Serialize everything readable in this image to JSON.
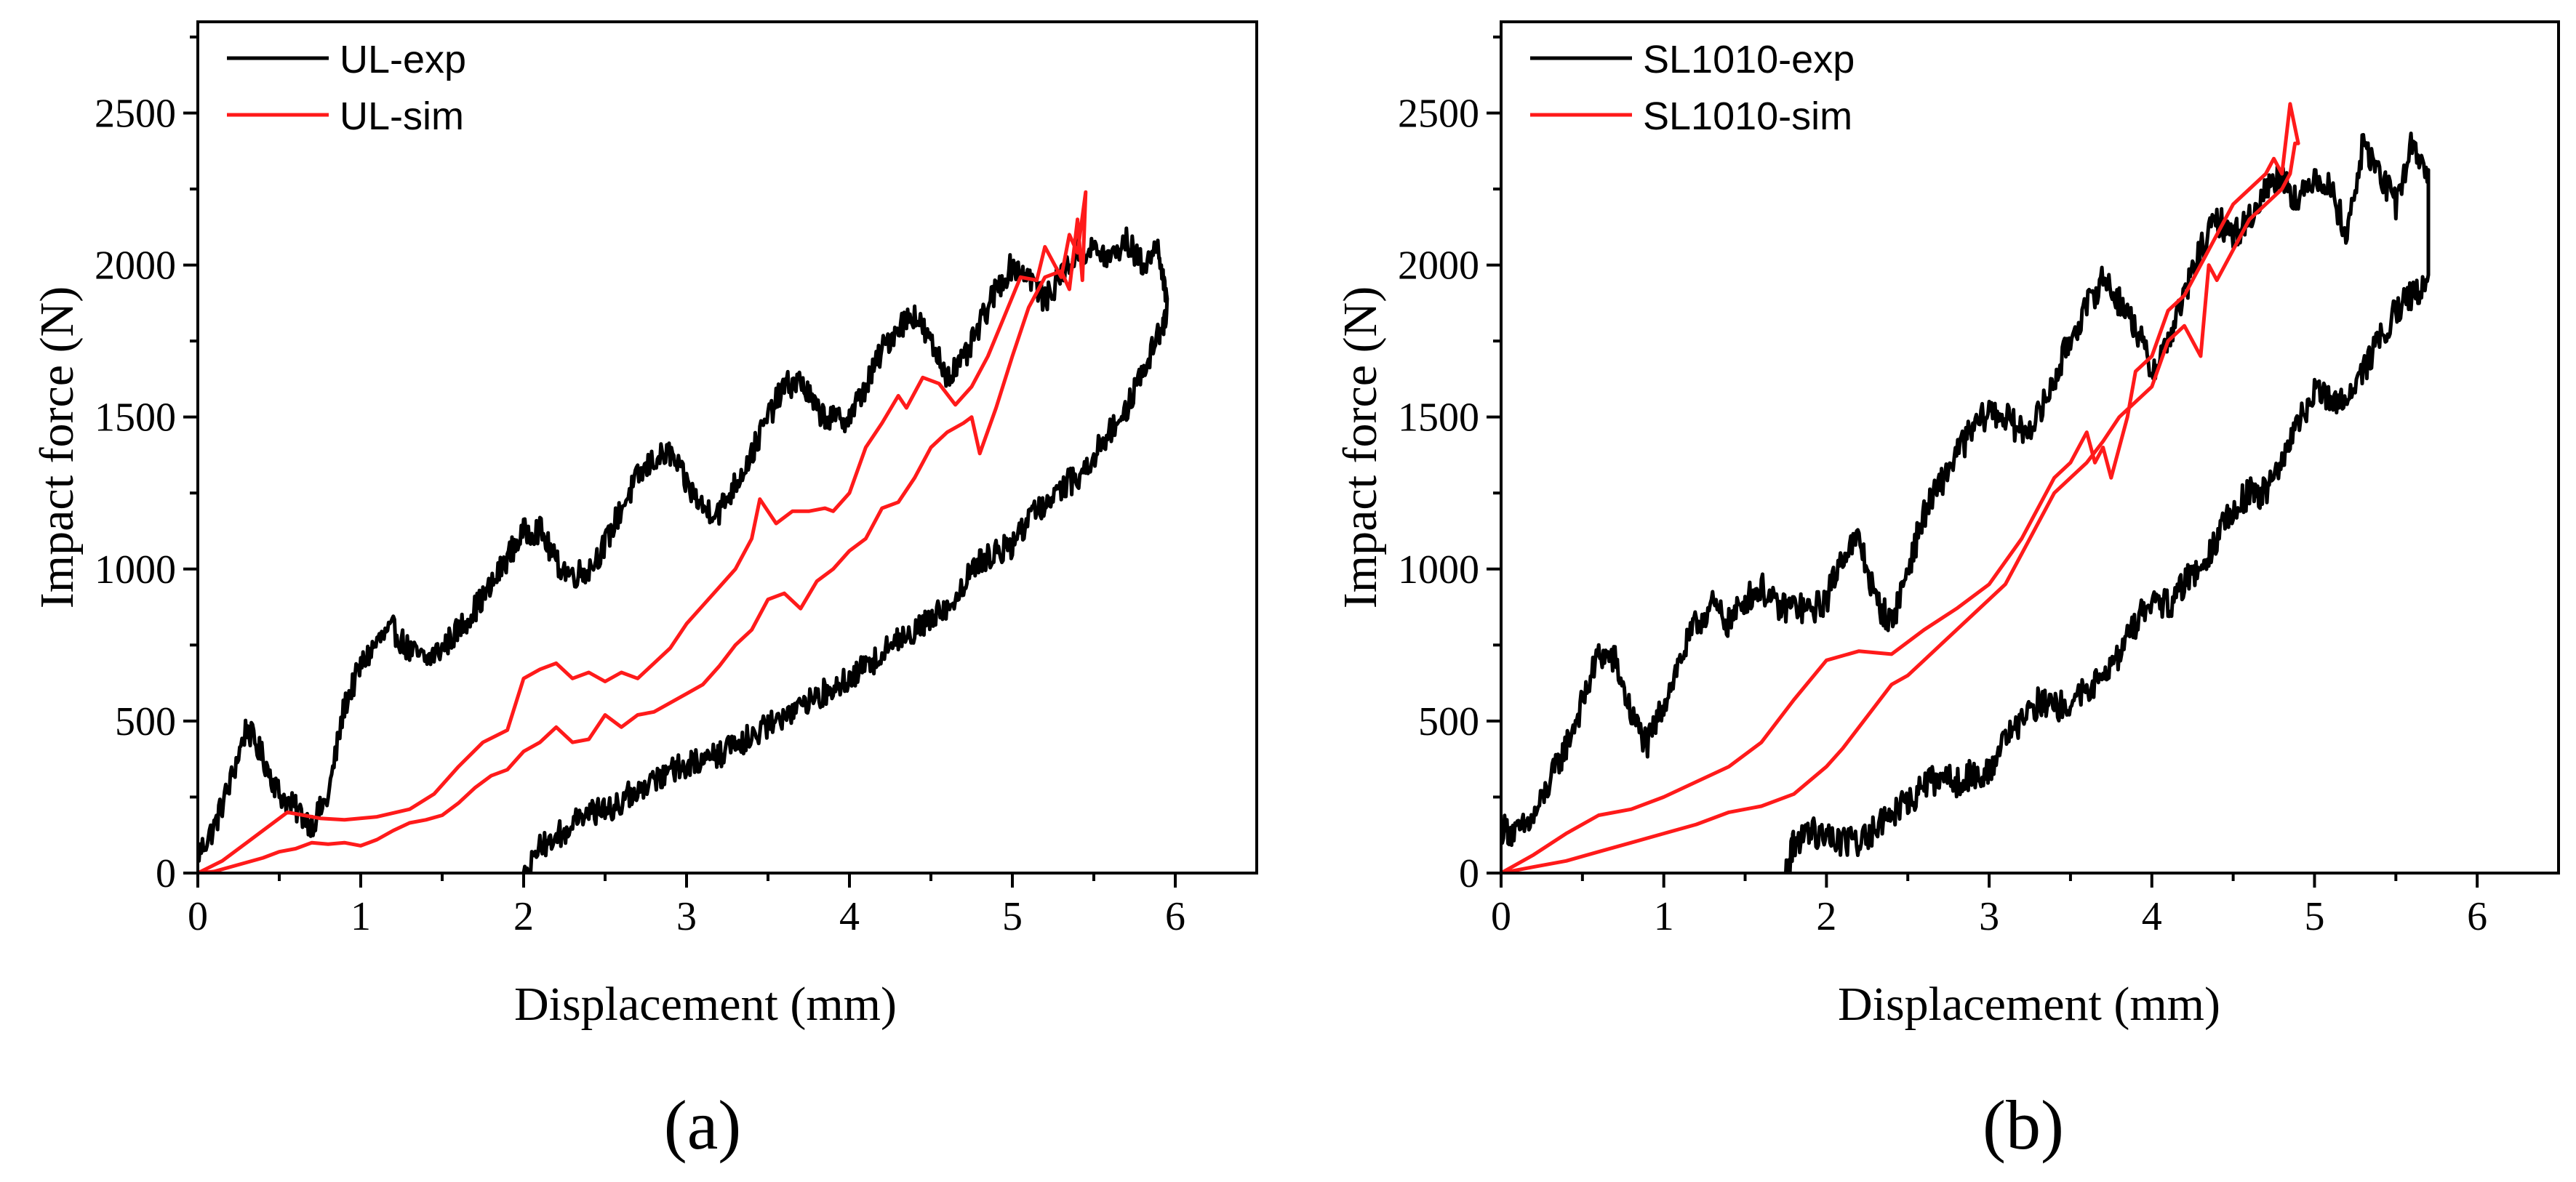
{
  "figure": {
    "panel_labels": [
      "(a)",
      "(b)"
    ]
  },
  "chart_data": [
    {
      "type": "line",
      "panel_label": "(a)",
      "xlabel": "Displacement (mm)",
      "ylabel": "Impact force (N)",
      "xlim": [
        0,
        6.5
      ],
      "ylim": [
        0,
        2800
      ],
      "xticks": [
        0,
        1,
        2,
        3,
        4,
        5,
        6
      ],
      "yticks": [
        0,
        500,
        1000,
        1500,
        2000,
        2500
      ],
      "grid": false,
      "legend_position": "top-left",
      "series": [
        {
          "name": "UL-exp",
          "color": "#000000",
          "noise": 45,
          "x": [
            0,
            0.1,
            0.2,
            0.3,
            0.4,
            0.5,
            0.6,
            0.7,
            0.8,
            0.9,
            1.0,
            1.1,
            1.2,
            1.3,
            1.4,
            1.5,
            1.6,
            1.7,
            1.8,
            1.9,
            2.0,
            2.1,
            2.2,
            2.3,
            2.4,
            2.5,
            2.6,
            2.7,
            2.8,
            2.9,
            3.0,
            3.1,
            3.2,
            3.3,
            3.4,
            3.5,
            3.6,
            3.7,
            3.8,
            3.9,
            4.0,
            4.1,
            4.2,
            4.3,
            4.4,
            4.5,
            4.6,
            4.7,
            4.8,
            4.9,
            5.0,
            5.1,
            5.2,
            5.3,
            5.4,
            5.5,
            5.6,
            5.7,
            5.8,
            5.9,
            5.95,
            5.9,
            5.8,
            5.7,
            5.6,
            5.5,
            5.4,
            5.3,
            5.2,
            5.1,
            5.0,
            4.9,
            4.8,
            4.7,
            4.6,
            4.5,
            4.4,
            4.3,
            4.2,
            4.1,
            4.0,
            3.9,
            3.8,
            3.7,
            3.6,
            3.5,
            3.4,
            3.3,
            3.2,
            3.1,
            3.0,
            2.9,
            2.8,
            2.7,
            2.6,
            2.5,
            2.4,
            2.3,
            2.2,
            2.1,
            2.0
          ],
          "y": [
            60,
            150,
            300,
            480,
            380,
            260,
            210,
            160,
            250,
            550,
            680,
            760,
            800,
            730,
            700,
            740,
            800,
            870,
            940,
            1040,
            1120,
            1130,
            1020,
            980,
            1000,
            1080,
            1200,
            1300,
            1360,
            1380,
            1280,
            1200,
            1190,
            1280,
            1380,
            1500,
            1600,
            1620,
            1520,
            1490,
            1500,
            1600,
            1720,
            1800,
            1840,
            1740,
            1640,
            1680,
            1800,
            1920,
            2000,
            1970,
            1880,
            1970,
            2040,
            2050,
            2020,
            2080,
            2000,
            2060,
            1850,
            1770,
            1650,
            1520,
            1460,
            1370,
            1300,
            1270,
            1220,
            1170,
            1080,
            1050,
            1020,
            950,
            880,
            830,
            800,
            780,
            720,
            680,
            640,
            610,
            580,
            560,
            520,
            490,
            450,
            420,
            390,
            370,
            360,
            340,
            310,
            280,
            240,
            200,
            200,
            160,
            120,
            80,
            0
          ]
        },
        {
          "name": "UL-sim",
          "color": "#ff1a1a",
          "noise": 0,
          "x": [
            0,
            0.15,
            0.3,
            0.45,
            0.55,
            0.65,
            0.75,
            0.9,
            1.1,
            1.3,
            1.45,
            1.6,
            1.75,
            1.9,
            2.0,
            2.1,
            2.2,
            2.3,
            2.4,
            2.5,
            2.6,
            2.7,
            2.8,
            2.9,
            3.0,
            3.1,
            3.2,
            3.3,
            3.4,
            3.45,
            3.55,
            3.65,
            3.75,
            3.85,
            3.9,
            4.0,
            4.1,
            4.2,
            4.3,
            4.35,
            4.45,
            4.55,
            4.65,
            4.75,
            4.85,
            4.95,
            5.05,
            5.15,
            5.2,
            5.3,
            5.35,
            5.4,
            5.45,
            5.43,
            5.4,
            5.35,
            5.3,
            5.2,
            5.1,
            5.0,
            4.9,
            4.8,
            4.75,
            4.7,
            4.6,
            4.5,
            4.4,
            4.3,
            4.2,
            4.1,
            4.0,
            3.9,
            3.8,
            3.7,
            3.6,
            3.5,
            3.4,
            3.3,
            3.2,
            3.1,
            3.0,
            2.9,
            2.8,
            2.7,
            2.6,
            2.5,
            2.4,
            2.3,
            2.2,
            2.1,
            2.0,
            1.9,
            1.8,
            1.7,
            1.6,
            1.5,
            1.4,
            1.3,
            1.2,
            1.1,
            1.0,
            0.9,
            0.8,
            0.7,
            0.6,
            0.5,
            0.4,
            0.3,
            0.2,
            0.1,
            0
          ],
          "y": [
            0,
            40,
            100,
            160,
            200,
            190,
            180,
            175,
            185,
            210,
            260,
            350,
            430,
            470,
            640,
            670,
            690,
            640,
            660,
            630,
            660,
            640,
            690,
            740,
            820,
            880,
            940,
            1000,
            1100,
            1230,
            1150,
            1190,
            1190,
            1200,
            1190,
            1250,
            1400,
            1480,
            1570,
            1530,
            1630,
            1610,
            1540,
            1600,
            1700,
            1830,
            1960,
            1950,
            2060,
            1960,
            2100,
            2040,
            2240,
            1950,
            2150,
            1920,
            1980,
            1960,
            1860,
            1700,
            1530,
            1380,
            1500,
            1480,
            1450,
            1400,
            1300,
            1220,
            1200,
            1100,
            1060,
            1000,
            960,
            870,
            920,
            900,
            800,
            750,
            680,
            620,
            590,
            560,
            530,
            520,
            480,
            520,
            440,
            430,
            480,
            430,
            400,
            340,
            320,
            280,
            230,
            190,
            175,
            165,
            140,
            110,
            90,
            100,
            95,
            100,
            80,
            70,
            50,
            35,
            20,
            5,
            0
          ]
        }
      ]
    },
    {
      "type": "line",
      "panel_label": "(b)",
      "xlabel": "Displacement (mm)",
      "ylabel": "Impact force (N)",
      "xlim": [
        0,
        6.5
      ],
      "ylim": [
        0,
        2800
      ],
      "xticks": [
        0,
        1,
        2,
        3,
        4,
        5,
        6
      ],
      "yticks": [
        0,
        500,
        1000,
        1500,
        2000,
        2500
      ],
      "grid": false,
      "legend_position": "top-left",
      "series": [
        {
          "name": "SL1010-exp",
          "color": "#000000",
          "noise": 50,
          "x": [
            0,
            0.1,
            0.2,
            0.3,
            0.4,
            0.5,
            0.6,
            0.7,
            0.8,
            0.9,
            1.0,
            1.1,
            1.2,
            1.3,
            1.4,
            1.5,
            1.6,
            1.7,
            1.8,
            1.9,
            2.0,
            2.1,
            2.2,
            2.3,
            2.4,
            2.5,
            2.6,
            2.7,
            2.8,
            2.9,
            3.0,
            3.1,
            3.2,
            3.3,
            3.4,
            3.5,
            3.6,
            3.7,
            3.8,
            3.9,
            4.0,
            4.1,
            4.2,
            4.3,
            4.4,
            4.5,
            4.6,
            4.7,
            4.8,
            4.9,
            5.0,
            5.1,
            5.2,
            5.3,
            5.4,
            5.5,
            5.6,
            5.7,
            5.7,
            5.6,
            5.5,
            5.4,
            5.3,
            5.2,
            5.1,
            5.0,
            4.9,
            4.8,
            4.7,
            4.6,
            4.5,
            4.4,
            4.3,
            4.2,
            4.1,
            4.0,
            3.9,
            3.8,
            3.7,
            3.6,
            3.5,
            3.4,
            3.3,
            3.2,
            3.1,
            3.0,
            2.9,
            2.8,
            2.7,
            2.6,
            2.5,
            2.4,
            2.3,
            2.2,
            2.1,
            2.0,
            1.9,
            1.8,
            1.75
          ],
          "y": [
            150,
            130,
            180,
            300,
            420,
            560,
            720,
            700,
            520,
            420,
            560,
            700,
            820,
            880,
            820,
            900,
            940,
            870,
            880,
            860,
            900,
            1050,
            1100,
            900,
            820,
            1000,
            1180,
            1280,
            1380,
            1460,
            1520,
            1500,
            1450,
            1500,
            1620,
            1760,
            1860,
            1960,
            1880,
            1800,
            1650,
            1750,
            1900,
            2050,
            2150,
            2100,
            2150,
            2250,
            2300,
            2200,
            2300,
            2250,
            2100,
            2400,
            2300,
            2200,
            2400,
            2300,
            1950,
            1900,
            1850,
            1750,
            1650,
            1580,
            1550,
            1580,
            1480,
            1350,
            1250,
            1250,
            1200,
            1100,
            1020,
            950,
            880,
            900,
            820,
            720,
            640,
            600,
            560,
            540,
            560,
            500,
            430,
            330,
            330,
            300,
            320,
            280,
            230,
            200,
            140,
            100,
            100,
            120,
            140,
            100,
            0
          ]
        },
        {
          "name": "SL1010-sim",
          "color": "#ff1a1a",
          "noise": 0,
          "x": [
            0,
            0.2,
            0.4,
            0.6,
            0.8,
            1.0,
            1.2,
            1.4,
            1.6,
            1.8,
            2.0,
            2.2,
            2.4,
            2.6,
            2.8,
            3.0,
            3.2,
            3.4,
            3.5,
            3.6,
            3.65,
            3.7,
            3.75,
            3.8,
            3.85,
            3.9,
            4.0,
            4.1,
            4.2,
            4.3,
            4.4,
            4.5,
            4.6,
            4.7,
            4.75,
            4.8,
            4.85,
            4.9,
            4.88,
            4.85,
            4.8,
            4.7,
            4.6,
            4.5,
            4.4,
            4.35,
            4.3,
            4.2,
            4.1,
            4.0,
            3.9,
            3.8,
            3.7,
            3.6,
            3.5,
            3.4,
            3.3,
            3.2,
            3.1,
            3.0,
            2.9,
            2.8,
            2.7,
            2.6,
            2.5,
            2.4,
            2.3,
            2.2,
            2.1,
            2.0,
            1.8,
            1.6,
            1.4,
            1.2,
            1.0,
            0.8,
            0.6,
            0.4,
            0.2,
            0
          ],
          "y": [
            0,
            60,
            130,
            190,
            210,
            250,
            300,
            350,
            430,
            570,
            700,
            730,
            720,
            800,
            870,
            950,
            1100,
            1300,
            1350,
            1450,
            1350,
            1400,
            1300,
            1400,
            1500,
            1650,
            1700,
            1850,
            1900,
            2000,
            2100,
            2200,
            2250,
            2300,
            2350,
            2300,
            2530,
            2400,
            2400,
            2300,
            2250,
            2200,
            2150,
            2050,
            1950,
            2000,
            1700,
            1800,
            1750,
            1600,
            1550,
            1500,
            1420,
            1350,
            1300,
            1250,
            1150,
            1050,
            950,
            900,
            850,
            800,
            750,
            700,
            650,
            620,
            550,
            480,
            410,
            350,
            260,
            220,
            200,
            160,
            130,
            100,
            70,
            40,
            20,
            0
          ]
        }
      ]
    }
  ]
}
